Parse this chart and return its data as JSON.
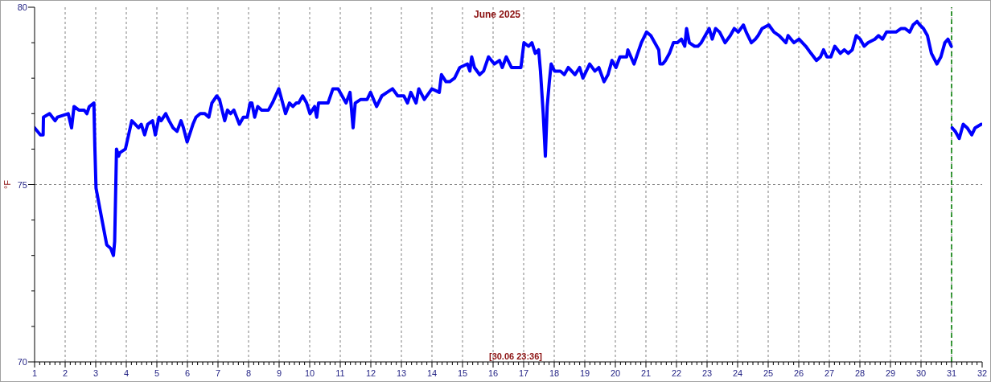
{
  "chart_data": {
    "type": "line",
    "title": "June 2025",
    "ylabel": "°F",
    "annotations": [
      "[30.06 23:36]"
    ],
    "x": [
      1.0,
      1.19,
      1.28,
      1.29,
      1.49,
      1.67,
      1.75,
      2.1,
      2.21,
      2.29,
      2.45,
      2.62,
      2.71,
      2.79,
      2.94,
      2.97,
      3.01,
      3.14,
      3.36,
      3.49,
      3.58,
      3.62,
      3.68,
      3.75,
      3.79,
      3.97,
      4.18,
      4.4,
      4.49,
      4.6,
      4.7,
      4.86,
      4.95,
      5.07,
      5.14,
      5.29,
      5.4,
      5.53,
      5.66,
      5.79,
      5.87,
      5.99,
      6.18,
      6.28,
      6.42,
      6.57,
      6.7,
      6.8,
      6.96,
      7.05,
      7.22,
      7.31,
      7.41,
      7.52,
      7.7,
      7.83,
      7.96,
      8.05,
      8.11,
      8.2,
      8.3,
      8.43,
      8.56,
      8.65,
      8.78,
      8.99,
      9.21,
      9.34,
      9.45,
      9.56,
      9.64,
      9.77,
      9.9,
      10.01,
      10.16,
      10.23,
      10.29,
      10.6,
      10.76,
      10.93,
      11.19,
      11.32,
      11.42,
      11.49,
      11.67,
      11.88,
      11.99,
      12.19,
      12.36,
      12.53,
      12.71,
      12.88,
      13.08,
      13.2,
      13.31,
      13.48,
      13.57,
      13.75,
      14.0,
      14.24,
      14.31,
      14.46,
      14.58,
      14.74,
      14.91,
      15.16,
      15.24,
      15.3,
      15.39,
      15.56,
      15.69,
      15.85,
      16.04,
      16.21,
      16.3,
      16.43,
      16.6,
      16.78,
      16.91,
      17.01,
      17.16,
      17.27,
      17.38,
      17.49,
      17.55,
      17.64,
      17.71,
      17.77,
      17.84,
      17.9,
      18.01,
      18.2,
      18.33,
      18.46,
      18.68,
      18.83,
      18.94,
      19.16,
      19.33,
      19.46,
      19.63,
      19.76,
      19.89,
      20.02,
      20.15,
      20.37,
      20.41,
      20.61,
      20.85,
      21.02,
      21.16,
      21.42,
      21.46,
      21.55,
      21.64,
      21.77,
      21.9,
      22.03,
      22.16,
      22.27,
      22.33,
      22.42,
      22.59,
      22.7,
      22.81,
      22.94,
      23.07,
      23.17,
      23.28,
      23.41,
      23.59,
      23.76,
      23.89,
      24.02,
      24.19,
      24.28,
      24.45,
      24.58,
      24.67,
      24.8,
      25.02,
      25.19,
      25.36,
      25.58,
      25.65,
      25.84,
      26.01,
      26.23,
      26.4,
      26.58,
      26.71,
      26.81,
      26.92,
      27.05,
      27.18,
      27.36,
      27.49,
      27.62,
      27.75,
      27.88,
      28.01,
      28.14,
      28.27,
      28.49,
      28.61,
      28.74,
      28.87,
      29.05,
      29.18,
      29.35,
      29.48,
      29.63,
      29.74,
      29.87,
      29.96,
      30.08,
      30.21,
      30.34,
      30.52,
      30.65,
      30.78,
      30.88,
      30.99,
      31.0,
      31.02,
      31.12,
      31.25,
      31.38,
      31.51,
      31.66,
      31.77,
      31.97
    ],
    "series": [
      {
        "color": "#0000ff",
        "values": [
          76.6,
          76.4,
          76.4,
          76.9,
          77.0,
          76.8,
          76.9,
          77.0,
          76.6,
          77.2,
          77.1,
          77.1,
          77.0,
          77.2,
          77.3,
          76.1,
          74.9,
          74.3,
          73.3,
          73.2,
          73.0,
          73.4,
          76.0,
          75.8,
          75.9,
          76.0,
          76.8,
          76.6,
          76.7,
          76.4,
          76.7,
          76.8,
          76.4,
          76.9,
          76.8,
          77.0,
          76.8,
          76.6,
          76.5,
          76.8,
          76.6,
          76.2,
          76.7,
          76.9,
          77.0,
          77.0,
          76.9,
          77.3,
          77.5,
          77.4,
          76.8,
          77.1,
          77.0,
          77.1,
          76.7,
          76.9,
          76.9,
          77.3,
          77.3,
          76.9,
          77.2,
          77.1,
          77.1,
          77.1,
          77.3,
          77.7,
          77.0,
          77.3,
          77.2,
          77.3,
          77.3,
          77.5,
          77.3,
          77.0,
          77.2,
          76.9,
          77.3,
          77.3,
          77.7,
          77.7,
          77.3,
          77.6,
          76.6,
          77.3,
          77.4,
          77.4,
          77.6,
          77.2,
          77.5,
          77.6,
          77.7,
          77.5,
          77.5,
          77.3,
          77.6,
          77.3,
          77.7,
          77.4,
          77.7,
          77.6,
          78.1,
          77.9,
          77.9,
          78.0,
          78.3,
          78.4,
          78.2,
          78.6,
          78.3,
          78.1,
          78.2,
          78.6,
          78.4,
          78.5,
          78.3,
          78.6,
          78.3,
          78.3,
          78.3,
          79.0,
          78.9,
          79.0,
          78.7,
          78.8,
          78.2,
          77.0,
          75.8,
          77.2,
          77.9,
          78.4,
          78.2,
          78.2,
          78.1,
          78.3,
          78.1,
          78.3,
          78.0,
          78.4,
          78.2,
          78.3,
          77.9,
          78.1,
          78.5,
          78.3,
          78.6,
          78.6,
          78.8,
          78.4,
          79.0,
          79.3,
          79.2,
          78.8,
          78.4,
          78.4,
          78.5,
          78.7,
          79.0,
          79.0,
          79.1,
          78.9,
          79.4,
          79.0,
          78.9,
          78.9,
          79.0,
          79.2,
          79.4,
          79.1,
          79.4,
          79.3,
          79.0,
          79.2,
          79.4,
          79.3,
          79.5,
          79.3,
          79.0,
          79.1,
          79.2,
          79.4,
          79.5,
          79.3,
          79.2,
          79.0,
          79.2,
          79.0,
          79.1,
          78.9,
          78.7,
          78.5,
          78.6,
          78.8,
          78.6,
          78.6,
          78.9,
          78.7,
          78.8,
          78.7,
          78.8,
          79.2,
          79.1,
          78.9,
          79.0,
          79.1,
          79.2,
          79.1,
          79.3,
          79.3,
          79.3,
          79.4,
          79.4,
          79.3,
          79.5,
          79.6,
          79.5,
          79.4,
          79.2,
          78.7,
          78.4,
          78.6,
          79.0,
          79.1,
          78.9,
          null,
          76.6,
          76.5,
          76.3,
          76.7,
          76.6,
          76.4,
          76.6,
          76.7
        ]
      }
    ],
    "xlim": [
      1,
      32
    ],
    "xticks": [
      1,
      {
        "value": 1.167,
        "label": null
      },
      {
        "value": 1.333,
        "label": null
      },
      {
        "value": 1.5,
        "label": null
      },
      {
        "value": 1.667,
        "label": null
      },
      {
        "value": 1.833,
        "label": null
      },
      2,
      {
        "value": 2.167,
        "label": null
      },
      {
        "value": 2.333,
        "label": null
      },
      {
        "value": 2.5,
        "label": null
      },
      {
        "value": 2.667,
        "label": null
      },
      {
        "value": 2.833,
        "label": null
      },
      3,
      {
        "value": 3.167,
        "label": null
      },
      {
        "value": 3.333,
        "label": null
      },
      {
        "value": 3.5,
        "label": null
      },
      {
        "value": 3.667,
        "label": null
      },
      {
        "value": 3.833,
        "label": null
      },
      4,
      {
        "value": 4.167,
        "label": null
      },
      {
        "value": 4.333,
        "label": null
      },
      {
        "value": 4.5,
        "label": null
      },
      {
        "value": 4.667,
        "label": null
      },
      {
        "value": 4.833,
        "label": null
      },
      5,
      {
        "value": 5.167,
        "label": null
      },
      {
        "value": 5.333,
        "label": null
      },
      {
        "value": 5.5,
        "label": null
      },
      {
        "value": 5.667,
        "label": null
      },
      {
        "value": 5.833,
        "label": null
      },
      6,
      {
        "value": 6.167,
        "label": null
      },
      {
        "value": 6.333,
        "label": null
      },
      {
        "value": 6.5,
        "label": null
      },
      {
        "value": 6.667,
        "label": null
      },
      {
        "value": 6.833,
        "label": null
      },
      7,
      {
        "value": 7.167,
        "label": null
      },
      {
        "value": 7.333,
        "label": null
      },
      {
        "value": 7.5,
        "label": null
      },
      {
        "value": 7.667,
        "label": null
      },
      {
        "value": 7.833,
        "label": null
      },
      8,
      {
        "value": 8.167,
        "label": null
      },
      {
        "value": 8.333,
        "label": null
      },
      {
        "value": 8.5,
        "label": null
      },
      {
        "value": 8.667,
        "label": null
      },
      {
        "value": 8.833,
        "label": null
      },
      9,
      {
        "value": 9.167,
        "label": null
      },
      {
        "value": 9.333,
        "label": null
      },
      {
        "value": 9.5,
        "label": null
      },
      {
        "value": 9.667,
        "label": null
      },
      {
        "value": 9.833,
        "label": null
      },
      10,
      {
        "value": 10.167,
        "label": null
      },
      {
        "value": 10.333,
        "label": null
      },
      {
        "value": 10.5,
        "label": null
      },
      {
        "value": 10.667,
        "label": null
      },
      {
        "value": 10.833,
        "label": null
      },
      11,
      {
        "value": 11.167,
        "label": null
      },
      {
        "value": 11.333,
        "label": null
      },
      {
        "value": 11.5,
        "label": null
      },
      {
        "value": 11.667,
        "label": null
      },
      {
        "value": 11.833,
        "label": null
      },
      12,
      {
        "value": 12.167,
        "label": null
      },
      {
        "value": 12.333,
        "label": null
      },
      {
        "value": 12.5,
        "label": null
      },
      {
        "value": 12.667,
        "label": null
      },
      {
        "value": 12.833,
        "label": null
      },
      13,
      {
        "value": 13.167,
        "label": null
      },
      {
        "value": 13.333,
        "label": null
      },
      {
        "value": 13.5,
        "label": null
      },
      {
        "value": 13.667,
        "label": null
      },
      {
        "value": 13.833,
        "label": null
      },
      14,
      {
        "value": 14.167,
        "label": null
      },
      {
        "value": 14.333,
        "label": null
      },
      {
        "value": 14.5,
        "label": null
      },
      {
        "value": 14.667,
        "label": null
      },
      {
        "value": 14.833,
        "label": null
      },
      15,
      {
        "value": 15.167,
        "label": null
      },
      {
        "value": 15.333,
        "label": null
      },
      {
        "value": 15.5,
        "label": null
      },
      {
        "value": 15.667,
        "label": null
      },
      {
        "value": 15.833,
        "label": null
      },
      16,
      {
        "value": 16.167,
        "label": null
      },
      {
        "value": 16.333,
        "label": null
      },
      {
        "value": 16.5,
        "label": null
      },
      {
        "value": 16.667,
        "label": null
      },
      {
        "value": 16.833,
        "label": null
      },
      17,
      {
        "value": 17.167,
        "label": null
      },
      {
        "value": 17.333,
        "label": null
      },
      {
        "value": 17.5,
        "label": null
      },
      {
        "value": 17.667,
        "label": null
      },
      {
        "value": 17.833,
        "label": null
      },
      18,
      {
        "value": 18.167,
        "label": null
      },
      {
        "value": 18.333,
        "label": null
      },
      {
        "value": 18.5,
        "label": null
      },
      {
        "value": 18.667,
        "label": null
      },
      {
        "value": 18.833,
        "label": null
      },
      19,
      {
        "value": 19.167,
        "label": null
      },
      {
        "value": 19.333,
        "label": null
      },
      {
        "value": 19.5,
        "label": null
      },
      {
        "value": 19.667,
        "label": null
      },
      {
        "value": 19.833,
        "label": null
      },
      20,
      {
        "value": 20.167,
        "label": null
      },
      {
        "value": 20.333,
        "label": null
      },
      {
        "value": 20.5,
        "label": null
      },
      {
        "value": 20.667,
        "label": null
      },
      {
        "value": 20.833,
        "label": null
      },
      21,
      {
        "value": 21.167,
        "label": null
      },
      {
        "value": 21.333,
        "label": null
      },
      {
        "value": 21.5,
        "label": null
      },
      {
        "value": 21.667,
        "label": null
      },
      {
        "value": 21.833,
        "label": null
      },
      22,
      {
        "value": 22.167,
        "label": null
      },
      {
        "value": 22.333,
        "label": null
      },
      {
        "value": 22.5,
        "label": null
      },
      {
        "value": 22.667,
        "label": null
      },
      {
        "value": 22.833,
        "label": null
      },
      23,
      {
        "value": 23.167,
        "label": null
      },
      {
        "value": 23.333,
        "label": null
      },
      {
        "value": 23.5,
        "label": null
      },
      {
        "value": 23.667,
        "label": null
      },
      {
        "value": 23.833,
        "label": null
      },
      24,
      {
        "value": 24.167,
        "label": null
      },
      {
        "value": 24.333,
        "label": null
      },
      {
        "value": 24.5,
        "label": null
      },
      {
        "value": 24.667,
        "label": null
      },
      {
        "value": 24.833,
        "label": null
      },
      25,
      {
        "value": 25.167,
        "label": null
      },
      {
        "value": 25.333,
        "label": null
      },
      {
        "value": 25.5,
        "label": null
      },
      {
        "value": 25.667,
        "label": null
      },
      {
        "value": 25.833,
        "label": null
      },
      26,
      {
        "value": 26.167,
        "label": null
      },
      {
        "value": 26.333,
        "label": null
      },
      {
        "value": 26.5,
        "label": null
      },
      {
        "value": 26.667,
        "label": null
      },
      {
        "value": 26.833,
        "label": null
      },
      27,
      {
        "value": 27.167,
        "label": null
      },
      {
        "value": 27.333,
        "label": null
      },
      {
        "value": 27.5,
        "label": null
      },
      {
        "value": 27.667,
        "label": null
      },
      {
        "value": 27.833,
        "label": null
      },
      28,
      {
        "value": 28.167,
        "label": null
      },
      {
        "value": 28.333,
        "label": null
      },
      {
        "value": 28.5,
        "label": null
      },
      {
        "value": 28.667,
        "label": null
      },
      {
        "value": 28.833,
        "label": null
      },
      29,
      {
        "value": 29.167,
        "label": null
      },
      {
        "value": 29.333,
        "label": null
      },
      {
        "value": 29.5,
        "label": null
      },
      {
        "value": 29.667,
        "label": null
      },
      {
        "value": 29.833,
        "label": null
      },
      30,
      {
        "value": 30.167,
        "label": null
      },
      {
        "value": 30.333,
        "label": null
      },
      {
        "value": 30.5,
        "label": null
      },
      {
        "value": 30.667,
        "label": null
      },
      {
        "value": 30.833,
        "label": null
      },
      31,
      {
        "value": 31.167,
        "label": null
      },
      {
        "value": 31.333,
        "label": null
      },
      {
        "value": 31.5,
        "label": null
      },
      {
        "value": 31.667,
        "label": null
      },
      {
        "value": 31.833,
        "label": null
      },
      32
    ],
    "ylim": [
      70,
      80
    ],
    "yticks": [
      70,
      {
        "value": 71,
        "label": null
      },
      {
        "value": 72,
        "label": null
      },
      {
        "value": 73,
        "label": null
      },
      {
        "value": 74,
        "label": null
      },
      75,
      {
        "value": 76,
        "label": null
      },
      {
        "value": 77,
        "label": null
      },
      {
        "value": 78,
        "label": null
      },
      {
        "value": 79,
        "label": null
      },
      80
    ],
    "grid": true,
    "marker": "none",
    "line_style": "solid",
    "ref_lines": [
      {
        "axis": "x",
        "value": 31,
        "color": "#008000",
        "line_style": "dashed"
      }
    ]
  }
}
